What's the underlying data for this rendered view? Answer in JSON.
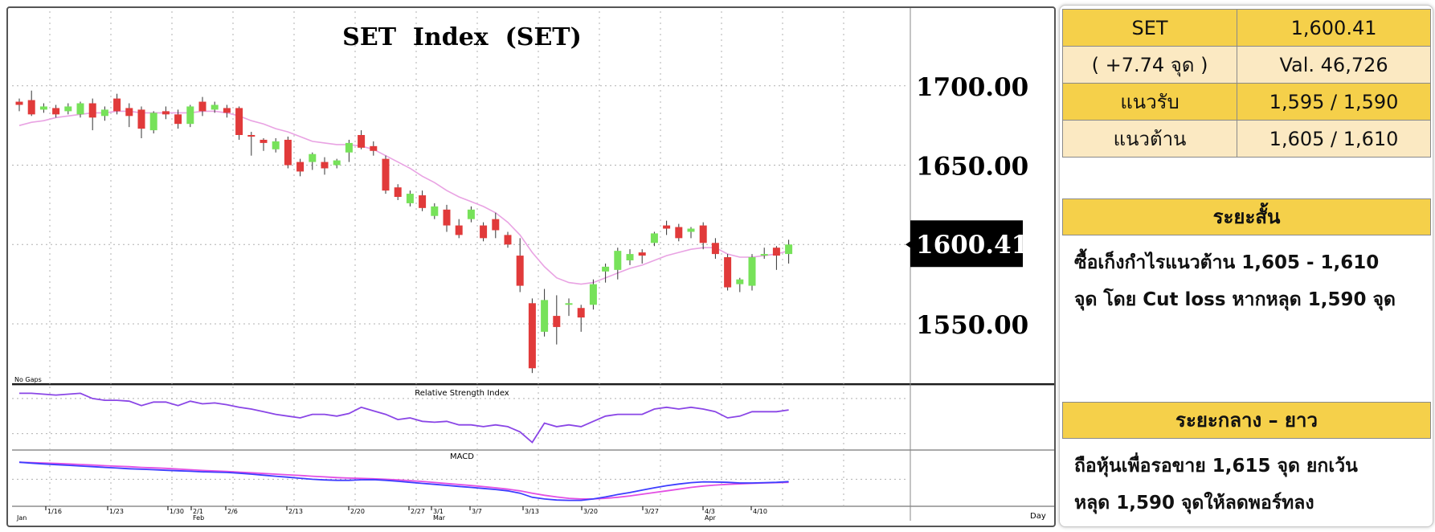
{
  "chart_data": [
    {
      "type": "candlestick",
      "title": "SET  Index  (SET)",
      "corner_note": "No Gaps",
      "last_price_label": "1600.41",
      "y_tick_labels": [
        "1700.00",
        "1650.00",
        "1600.00",
        "1550.00"
      ],
      "y_ticks": [
        1700,
        1650,
        1600,
        1550
      ],
      "ylim": [
        1512,
        1747
      ],
      "ma_color": "#e9a3e3",
      "up_color": "#77e25a",
      "down_color": "#e13a3a",
      "candles": [
        {
          "o": 1690,
          "h": 1692,
          "l": 1684,
          "c": 1688
        },
        {
          "o": 1691,
          "h": 1697,
          "l": 1681,
          "c": 1682
        },
        {
          "o": 1685,
          "h": 1689,
          "l": 1683,
          "c": 1687
        },
        {
          "o": 1686,
          "h": 1688,
          "l": 1680,
          "c": 1682
        },
        {
          "o": 1684,
          "h": 1689,
          "l": 1682,
          "c": 1687
        },
        {
          "o": 1682,
          "h": 1690,
          "l": 1680,
          "c": 1689
        },
        {
          "o": 1689,
          "h": 1692,
          "l": 1672,
          "c": 1680
        },
        {
          "o": 1681,
          "h": 1687,
          "l": 1678,
          "c": 1685
        },
        {
          "o": 1692,
          "h": 1695,
          "l": 1682,
          "c": 1684
        },
        {
          "o": 1686,
          "h": 1689,
          "l": 1674,
          "c": 1681
        },
        {
          "o": 1685,
          "h": 1687,
          "l": 1667,
          "c": 1673
        },
        {
          "o": 1672,
          "h": 1684,
          "l": 1670,
          "c": 1683
        },
        {
          "o": 1684,
          "h": 1687,
          "l": 1679,
          "c": 1682
        },
        {
          "o": 1682,
          "h": 1685,
          "l": 1673,
          "c": 1676
        },
        {
          "o": 1676,
          "h": 1688,
          "l": 1674,
          "c": 1687
        },
        {
          "o": 1690,
          "h": 1693,
          "l": 1681,
          "c": 1684
        },
        {
          "o": 1685,
          "h": 1690,
          "l": 1683,
          "c": 1688
        },
        {
          "o": 1686,
          "h": 1688,
          "l": 1680,
          "c": 1683
        },
        {
          "o": 1686,
          "h": 1687,
          "l": 1666,
          "c": 1669
        },
        {
          "o": 1669,
          "h": 1671,
          "l": 1656,
          "c": 1668
        },
        {
          "o": 1666,
          "h": 1667,
          "l": 1659,
          "c": 1664
        },
        {
          "o": 1660,
          "h": 1667,
          "l": 1658,
          "c": 1665
        },
        {
          "o": 1666,
          "h": 1668,
          "l": 1648,
          "c": 1650
        },
        {
          "o": 1652,
          "h": 1654,
          "l": 1643,
          "c": 1646
        },
        {
          "o": 1652,
          "h": 1658,
          "l": 1647,
          "c": 1657
        },
        {
          "o": 1652,
          "h": 1655,
          "l": 1644,
          "c": 1648
        },
        {
          "o": 1650,
          "h": 1654,
          "l": 1648,
          "c": 1653
        },
        {
          "o": 1658,
          "h": 1666,
          "l": 1652,
          "c": 1664
        },
        {
          "o": 1669,
          "h": 1672,
          "l": 1660,
          "c": 1661
        },
        {
          "o": 1662,
          "h": 1665,
          "l": 1656,
          "c": 1659
        },
        {
          "o": 1654,
          "h": 1656,
          "l": 1632,
          "c": 1634
        },
        {
          "o": 1636,
          "h": 1638,
          "l": 1628,
          "c": 1630
        },
        {
          "o": 1626,
          "h": 1634,
          "l": 1624,
          "c": 1632
        },
        {
          "o": 1631,
          "h": 1634,
          "l": 1621,
          "c": 1623
        },
        {
          "o": 1618,
          "h": 1626,
          "l": 1616,
          "c": 1624
        },
        {
          "o": 1622,
          "h": 1625,
          "l": 1608,
          "c": 1612
        },
        {
          "o": 1612,
          "h": 1616,
          "l": 1604,
          "c": 1606
        },
        {
          "o": 1616,
          "h": 1624,
          "l": 1614,
          "c": 1622
        },
        {
          "o": 1612,
          "h": 1614,
          "l": 1602,
          "c": 1604
        },
        {
          "o": 1616,
          "h": 1620,
          "l": 1604,
          "c": 1609
        },
        {
          "o": 1606,
          "h": 1608,
          "l": 1598,
          "c": 1600
        },
        {
          "o": 1593,
          "h": 1604,
          "l": 1570,
          "c": 1574
        },
        {
          "o": 1563,
          "h": 1566,
          "l": 1519,
          "c": 1522
        },
        {
          "o": 1545,
          "h": 1572,
          "l": 1542,
          "c": 1565
        },
        {
          "o": 1555,
          "h": 1568,
          "l": 1537,
          "c": 1548
        },
        {
          "o": 1562,
          "h": 1566,
          "l": 1555,
          "c": 1563
        },
        {
          "o": 1560,
          "h": 1562,
          "l": 1545,
          "c": 1554
        },
        {
          "o": 1562,
          "h": 1578,
          "l": 1559,
          "c": 1575
        },
        {
          "o": 1583,
          "h": 1588,
          "l": 1576,
          "c": 1586
        },
        {
          "o": 1584,
          "h": 1598,
          "l": 1578,
          "c": 1596
        },
        {
          "o": 1590,
          "h": 1597,
          "l": 1587,
          "c": 1594
        },
        {
          "o": 1595,
          "h": 1597,
          "l": 1588,
          "c": 1593
        },
        {
          "o": 1601,
          "h": 1608,
          "l": 1599,
          "c": 1607
        },
        {
          "o": 1612,
          "h": 1615,
          "l": 1606,
          "c": 1610
        },
        {
          "o": 1611,
          "h": 1613,
          "l": 1602,
          "c": 1604
        },
        {
          "o": 1608,
          "h": 1611,
          "l": 1604,
          "c": 1610
        },
        {
          "o": 1612,
          "h": 1614,
          "l": 1597,
          "c": 1601
        },
        {
          "o": 1601,
          "h": 1604,
          "l": 1591,
          "c": 1594
        },
        {
          "o": 1592,
          "h": 1594,
          "l": 1571,
          "c": 1573
        },
        {
          "o": 1575,
          "h": 1579,
          "l": 1570,
          "c": 1578
        },
        {
          "o": 1574,
          "h": 1594,
          "l": 1571,
          "c": 1592
        },
        {
          "o": 1593,
          "h": 1598,
          "l": 1591,
          "c": 1594
        },
        {
          "o": 1598,
          "h": 1599,
          "l": 1584,
          "c": 1593
        },
        {
          "o": 1594,
          "h": 1603,
          "l": 1588,
          "c": 1600
        }
      ],
      "ma": [
        1675,
        1677,
        1678,
        1680,
        1681,
        1682,
        1683,
        1683,
        1684,
        1684,
        1683,
        1683,
        1683,
        1683,
        1683,
        1684,
        1684,
        1683,
        1681,
        1678,
        1676,
        1673,
        1671,
        1668,
        1665,
        1664,
        1663,
        1663,
        1662,
        1660,
        1656,
        1652,
        1648,
        1643,
        1639,
        1634,
        1630,
        1627,
        1624,
        1620,
        1614,
        1606,
        1595,
        1586,
        1579,
        1576,
        1575,
        1576,
        1579,
        1582,
        1585,
        1587,
        1590,
        1593,
        1595,
        1597,
        1598,
        1598,
        1594,
        1592,
        1592,
        1593,
        1594,
        1596
      ]
    },
    {
      "type": "line",
      "title": "Relative Strength Index",
      "values": [
        76,
        76,
        75,
        74,
        75,
        76,
        70,
        68,
        68,
        67,
        62,
        66,
        66,
        62,
        67,
        64,
        65,
        63,
        60,
        58,
        55,
        52,
        50,
        48,
        52,
        52,
        50,
        53,
        60,
        56,
        52,
        46,
        48,
        44,
        43,
        44,
        40,
        40,
        38,
        40,
        38,
        32,
        20,
        42,
        38,
        40,
        38,
        44,
        50,
        52,
        52,
        52,
        58,
        60,
        58,
        60,
        58,
        55,
        48,
        50,
        55,
        55,
        55,
        57
      ]
    },
    {
      "type": "line",
      "title": "MACD",
      "series": [
        {
          "color": "#3d3dff",
          "values": [
            1,
            1,
            1,
            1,
            1,
            1,
            1,
            1,
            1,
            1,
            1,
            1,
            1,
            1,
            1,
            1,
            1,
            1,
            1,
            1,
            1,
            1,
            1,
            1,
            1,
            1,
            1,
            1,
            1,
            1,
            1,
            1,
            1,
            1,
            1,
            1,
            1,
            1,
            1,
            1,
            1,
            1,
            1,
            1,
            1,
            1,
            1,
            1,
            1,
            1,
            1,
            1,
            1,
            1,
            1,
            1,
            1,
            1,
            1,
            1,
            1,
            1,
            1,
            1
          ]
        },
        {
          "color": "#e34fe3",
          "values": [
            1,
            1,
            1,
            1,
            1,
            1,
            1,
            1,
            1,
            1,
            1,
            1,
            1,
            1,
            1,
            1,
            1,
            1,
            1,
            1,
            1,
            1,
            1,
            1,
            1,
            1,
            1,
            1,
            1,
            1,
            1,
            1,
            1,
            1,
            1,
            1,
            1,
            1,
            1,
            1,
            1,
            1,
            1,
            1,
            1,
            1,
            1,
            1,
            1,
            1,
            1,
            1,
            1,
            1,
            1,
            1,
            1,
            1,
            1,
            1,
            1,
            1,
            1,
            1
          ]
        }
      ]
    }
  ],
  "macd_shape": {
    "blue": [
      10,
      9.5,
      9,
      8.6,
      8.2,
      7.8,
      7.4,
      7,
      6.6,
      6.2,
      5.9,
      5.6,
      5.3,
      5,
      4.7,
      4.4,
      4.2,
      4,
      3.6,
      3,
      2.4,
      1.8,
      1.2,
      0.6,
      0,
      -0.4,
      -0.6,
      -0.6,
      -0.3,
      -0.2,
      -0.6,
      -1.2,
      -1.8,
      -2.4,
      -3,
      -3.6,
      -4.2,
      -4.8,
      -5.4,
      -6,
      -6.8,
      -8.2,
      -10.6,
      -11.6,
      -12.2,
      -12.4,
      -12.4,
      -11.6,
      -10.4,
      -9,
      -7.8,
      -6.4,
      -5,
      -3.8,
      -2.8,
      -2,
      -1.5,
      -1.6,
      -1.8,
      -2.2,
      -2.2,
      -2,
      -1.8,
      -1.4
    ],
    "magenta": [
      10,
      9.8,
      9.6,
      9.3,
      9,
      8.7,
      8.4,
      8,
      7.7,
      7.4,
      7,
      6.7,
      6.4,
      6,
      5.6,
      5.2,
      4.9,
      4.6,
      4.2,
      3.8,
      3.4,
      3,
      2.6,
      2.2,
      1.8,
      1.4,
      1,
      0.7,
      0.5,
      0.3,
      0,
      -0.4,
      -0.8,
      -1.3,
      -1.9,
      -2.5,
      -3.1,
      -3.7,
      -4.3,
      -5,
      -5.8,
      -6.8,
      -8.2,
      -9.4,
      -10.4,
      -11.2,
      -11.6,
      -11.6,
      -11.2,
      -10.6,
      -9.8,
      -8.8,
      -7.8,
      -6.8,
      -5.8,
      -4.8,
      -4,
      -3.4,
      -3,
      -2.7,
      -2.4,
      -2.2,
      -2,
      -1.8
    ]
  },
  "x_axis": {
    "date_labels": [
      "1/16",
      "1/23",
      "1/30",
      "2/1",
      "2/6",
      "2/13",
      "2/20",
      "2/27",
      "3/1",
      "3/7",
      "3/13",
      "3/20",
      "3/27",
      "4/3",
      "4/10"
    ],
    "month_labels": [
      "Jan",
      "Feb",
      "Mar",
      "Apr"
    ],
    "unit_label": "Day"
  },
  "summary_table": [
    [
      "SET",
      "1,600.41"
    ],
    [
      "( +7.74 จุด )",
      "Val. 46,726"
    ],
    [
      "แนวรับ",
      "1,595 / 1,590"
    ],
    [
      "แนวต้าน",
      "1,605 / 1,610"
    ]
  ],
  "short_term": {
    "title": "ระยะสั้น",
    "line1": "ซื้อเก็งกำไรแนวต้าน 1,605 - 1,610",
    "line2": "จุด โดย Cut loss หากหลุด 1,590 จุด"
  },
  "long_term": {
    "title": "ระยะกลาง – ยาว",
    "line1": "ถือหุ้นเพื่อรอขาย 1,615 จุด ยกเว้น",
    "line2": "หลุด 1,590 จุดให้ลดพอร์ทลง"
  }
}
